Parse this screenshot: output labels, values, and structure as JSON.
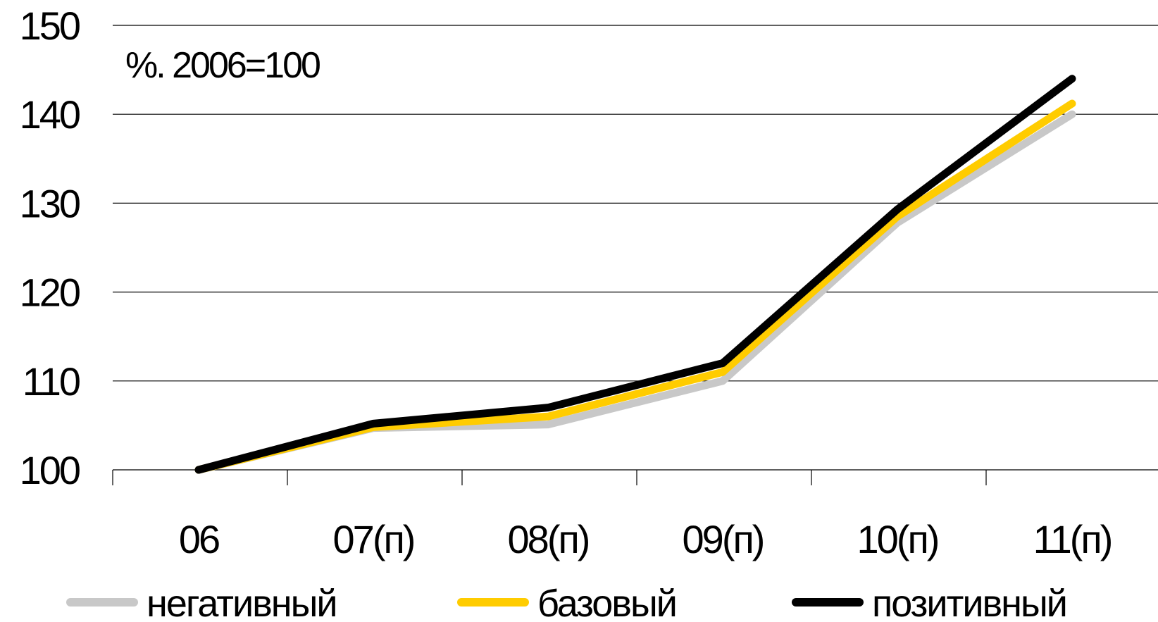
{
  "chart_data": {
    "type": "line",
    "title": "",
    "annotation": "%. 2006=100",
    "xlabel": "",
    "ylabel": "",
    "categories": [
      "06",
      "07(п)",
      "08(п)",
      "09(п)",
      "10(п)",
      "11(п)"
    ],
    "ylim": [
      100,
      150
    ],
    "yticks": [
      100,
      110,
      120,
      130,
      140,
      150
    ],
    "grid": true,
    "legend_position": "bottom",
    "series": [
      {
        "name": "негативный",
        "color": "#c8c8c8",
        "values": [
          100,
          104.7,
          105.1,
          110.0,
          127.8,
          140.0
        ]
      },
      {
        "name": "базовый",
        "color": "#ffcc00",
        "values": [
          100,
          104.8,
          106.0,
          111.0,
          128.5,
          141.2
        ]
      },
      {
        "name": "позитивный",
        "color": "#000000",
        "values": [
          100,
          105.2,
          107.0,
          112.0,
          129.3,
          144.0
        ]
      }
    ]
  }
}
